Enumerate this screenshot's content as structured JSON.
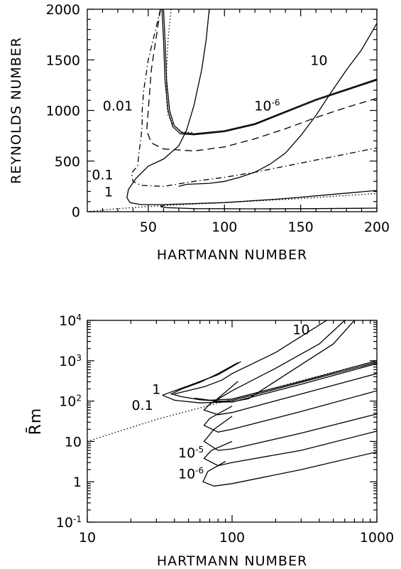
{
  "chart_data": [
    {
      "type": "line",
      "xlabel": "HARTMANN NUMBER",
      "ylabel": "REYNOLDS NUMBER",
      "xlim": [
        10,
        200
      ],
      "ylim": [
        0,
        2000
      ],
      "x_scale": "linear",
      "y_scale": "linear",
      "grid": false,
      "xticks": [
        50,
        100,
        150,
        200
      ],
      "yticks": [
        0,
        500,
        1000,
        1500,
        2000
      ],
      "annotations": [
        {
          "text": "0.01",
          "x": 30,
          "y": 1000
        },
        {
          "text": "10",
          "x": 162,
          "y": 1450
        },
        {
          "text": "10",
          "sup": "-6",
          "x": 128,
          "y": 1000
        },
        {
          "text": "0.1",
          "x": 20,
          "y": 320
        },
        {
          "text": "1",
          "x": 24,
          "y": 150
        }
      ],
      "series": [
        {
          "style": "solid",
          "points": [
            [
              60,
              2000
            ],
            [
              61,
              1700
            ],
            [
              62,
              1300
            ],
            [
              64,
              1000
            ],
            [
              67,
              850
            ],
            [
              72,
              780
            ],
            [
              80,
              770
            ],
            [
              100,
              800
            ],
            [
              120,
              870
            ],
            [
              140,
              990
            ],
            [
              160,
              1110
            ],
            [
              180,
              1210
            ],
            [
              200,
              1310
            ]
          ]
        },
        {
          "style": "solid",
          "points": [
            [
              59,
              2000
            ],
            [
              60,
              1700
            ],
            [
              61,
              1300
            ],
            [
              63,
              1000
            ],
            [
              66,
              840
            ],
            [
              71,
              770
            ],
            [
              80,
              760
            ],
            [
              100,
              790
            ],
            [
              120,
              860
            ],
            [
              140,
              980
            ],
            [
              160,
              1100
            ],
            [
              180,
              1200
            ],
            [
              200,
              1300
            ]
          ]
        },
        {
          "style": "dotted",
          "points": [
            [
              65,
              2000
            ],
            [
              63,
              1700
            ],
            [
              62,
              1400
            ],
            [
              62,
              1100
            ],
            [
              63,
              950
            ],
            [
              67,
              850
            ],
            [
              72,
              790
            ],
            [
              80,
              780
            ]
          ]
        },
        {
          "style": "dashed",
          "points": [
            [
              58,
              2000
            ],
            [
              55,
              1700
            ],
            [
              52,
              1400
            ],
            [
              50,
              1000
            ],
            [
              49,
              800
            ],
            [
              52,
              680
            ],
            [
              60,
              620
            ],
            [
              80,
              600
            ],
            [
              100,
              640
            ],
            [
              120,
              720
            ],
            [
              140,
              820
            ],
            [
              160,
              930
            ],
            [
              180,
              1030
            ],
            [
              200,
              1120
            ]
          ]
        },
        {
          "style": "dash-dot",
          "points": [
            [
              58,
              2000
            ],
            [
              54,
              1750
            ],
            [
              50,
              1500
            ],
            [
              47,
              1200
            ],
            [
              46,
              1000
            ],
            [
              46,
              850
            ],
            [
              45,
              700
            ],
            [
              44,
              600
            ],
            [
              43,
              450
            ],
            [
              40,
              400
            ],
            [
              39,
              380
            ],
            [
              40,
              300
            ],
            [
              45,
              260
            ],
            [
              60,
              250
            ],
            [
              80,
              300
            ],
            [
              100,
              340
            ],
            [
              120,
              390
            ],
            [
              140,
              450
            ],
            [
              160,
              510
            ],
            [
              180,
              570
            ],
            [
              200,
              630
            ]
          ]
        },
        {
          "style": "solid",
          "points": [
            [
              90,
              2000
            ],
            [
              88,
              1700
            ],
            [
              85,
              1400
            ],
            [
              80,
              1050
            ],
            [
              75,
              800
            ],
            [
              70,
              650
            ],
            [
              60,
              520
            ],
            [
              50,
              450
            ],
            [
              42,
              330
            ],
            [
              37,
              220
            ],
            [
              36,
              140
            ],
            [
              38,
              90
            ],
            [
              45,
              70
            ],
            [
              60,
              70
            ],
            [
              100,
              90
            ],
            [
              140,
              130
            ],
            [
              170,
              170
            ],
            [
              200,
              210
            ]
          ]
        },
        {
          "style": "solid",
          "points": [
            [
              200,
              1860
            ],
            [
              190,
              1600
            ],
            [
              180,
              1400
            ],
            [
              170,
              1180
            ],
            [
              160,
              950
            ],
            [
              150,
              750
            ],
            [
              140,
              580
            ],
            [
              130,
              470
            ],
            [
              120,
              390
            ],
            [
              110,
              340
            ],
            [
              100,
              300
            ],
            [
              90,
              280
            ],
            [
              75,
              270
            ],
            [
              70,
              250
            ]
          ]
        },
        {
          "style": "solid",
          "points": [
            [
              60,
              60
            ],
            [
              58,
              50
            ],
            [
              62,
              40
            ],
            [
              80,
              30
            ],
            [
              120,
              28
            ],
            [
              160,
              30
            ],
            [
              200,
              35
            ]
          ]
        },
        {
          "style": "dotted",
          "points": [
            [
              10,
              0
            ],
            [
              30,
              30
            ],
            [
              60,
              60
            ],
            [
              100,
              90
            ],
            [
              150,
              130
            ],
            [
              200,
              180
            ]
          ]
        }
      ]
    },
    {
      "type": "line",
      "xlabel": "HARTMANN NUMBER",
      "ylabel": "R̄m",
      "xlim": [
        10,
        1000
      ],
      "ylim": [
        0.1,
        10000
      ],
      "x_scale": "log",
      "y_scale": "log",
      "grid": false,
      "xticks": [
        10,
        100,
        1000
      ],
      "xtick_labels": [
        "10",
        "100",
        "1000"
      ],
      "yticks": [
        0.1,
        1,
        10,
        100,
        1000,
        10000
      ],
      "ytick_labels": [
        {
          "base": "10",
          "sup": "-1"
        },
        {
          "base": "1",
          "sup": ""
        },
        {
          "base": "10",
          "sup": ""
        },
        {
          "base": "10",
          "sup": "2"
        },
        {
          "base": "10",
          "sup": "3"
        },
        {
          "base": "10",
          "sup": "4"
        }
      ],
      "annotations": [
        {
          "text": "10",
          "x": 300,
          "y": 4500
        },
        {
          "text": "1",
          "x": 30,
          "y": 150
        },
        {
          "text": "0.1",
          "x": 24,
          "y": 60
        },
        {
          "text": "10",
          "sup": "-5",
          "x": 52,
          "y": 4
        },
        {
          "text": "10",
          "sup": "-6",
          "x": 52,
          "y": 1.2
        }
      ],
      "series": [
        {
          "style": "dotted",
          "points": [
            [
              10,
              10
            ],
            [
              30,
              35
            ],
            [
              100,
              110
            ],
            [
              300,
              320
            ],
            [
              1000,
              1000
            ]
          ]
        },
        {
          "style": "solid",
          "points": [
            [
              1000,
              1000
            ],
            [
              300,
              310
            ],
            [
              100,
              112
            ],
            [
              70,
              105
            ],
            [
              55,
              118
            ]
          ]
        },
        {
          "style": "solid",
          "points": [
            [
              1000,
              920
            ],
            [
              300,
              290
            ],
            [
              100,
              103
            ],
            [
              75,
              96
            ],
            [
              110,
              310
            ]
          ]
        },
        {
          "style": "solid",
          "points": [
            [
              1000,
              850
            ],
            [
              300,
              260
            ],
            [
              100,
              94
            ],
            [
              60,
              108
            ],
            [
              45,
              128
            ],
            [
              38,
              150
            ],
            [
              45,
              200
            ],
            [
              60,
              290
            ],
            [
              80,
              480
            ],
            [
              110,
              900
            ]
          ]
        },
        {
          "style": "solid",
          "points": [
            [
              1000,
              480
            ],
            [
              300,
              150
            ],
            [
              100,
              52
            ],
            [
              80,
              46
            ],
            [
              64,
              60
            ],
            [
              70,
              84
            ],
            [
              100,
              180
            ],
            [
              200,
              650
            ],
            [
              400,
              2600
            ],
            [
              600,
              10000
            ]
          ]
        },
        {
          "style": "solid",
          "points": [
            [
              1000,
              180
            ],
            [
              300,
              55
            ],
            [
              100,
              20
            ],
            [
              80,
              17
            ],
            [
              64,
              25
            ],
            [
              70,
              37
            ],
            [
              100,
              75
            ]
          ]
        },
        {
          "style": "solid",
          "points": [
            [
              1000,
              48
            ],
            [
              300,
              16
            ],
            [
              100,
              6.5
            ],
            [
              80,
              6
            ],
            [
              64,
              10
            ],
            [
              75,
              20
            ],
            [
              100,
              42
            ]
          ]
        },
        {
          "style": "solid",
          "points": [
            [
              1000,
              18
            ],
            [
              300,
              6
            ],
            [
              100,
              3
            ],
            [
              80,
              2.5
            ],
            [
              64,
              3.8
            ],
            [
              72,
              6
            ],
            [
              100,
              10
            ]
          ]
        },
        {
          "style": "solid",
          "points": [
            [
              1000,
              5.5
            ],
            [
              300,
              2
            ],
            [
              100,
              0.9
            ],
            [
              75,
              0.78
            ],
            [
              63,
              1
            ],
            [
              68,
              1.8
            ],
            [
              90,
              3.2
            ]
          ]
        },
        {
          "style": "solid",
          "points": [
            [
              33,
              140
            ],
            [
              40,
              105
            ],
            [
              60,
              90
            ],
            [
              100,
              96
            ],
            [
              130,
              115
            ],
            [
              300,
              800
            ],
            [
              500,
              2600
            ],
            [
              700,
              10000
            ]
          ]
        },
        {
          "style": "solid",
          "points": [
            [
              33,
              140
            ],
            [
              50,
              240
            ],
            [
              80,
              450
            ],
            [
              115,
              950
            ]
          ]
        },
        {
          "style": "solid",
          "points": [
            [
              40,
              150
            ],
            [
              65,
              230
            ],
            [
              85,
              330
            ],
            [
              100,
              480
            ],
            [
              200,
              1600
            ],
            [
              300,
              4000
            ],
            [
              450,
              10000
            ]
          ]
        }
      ]
    }
  ]
}
